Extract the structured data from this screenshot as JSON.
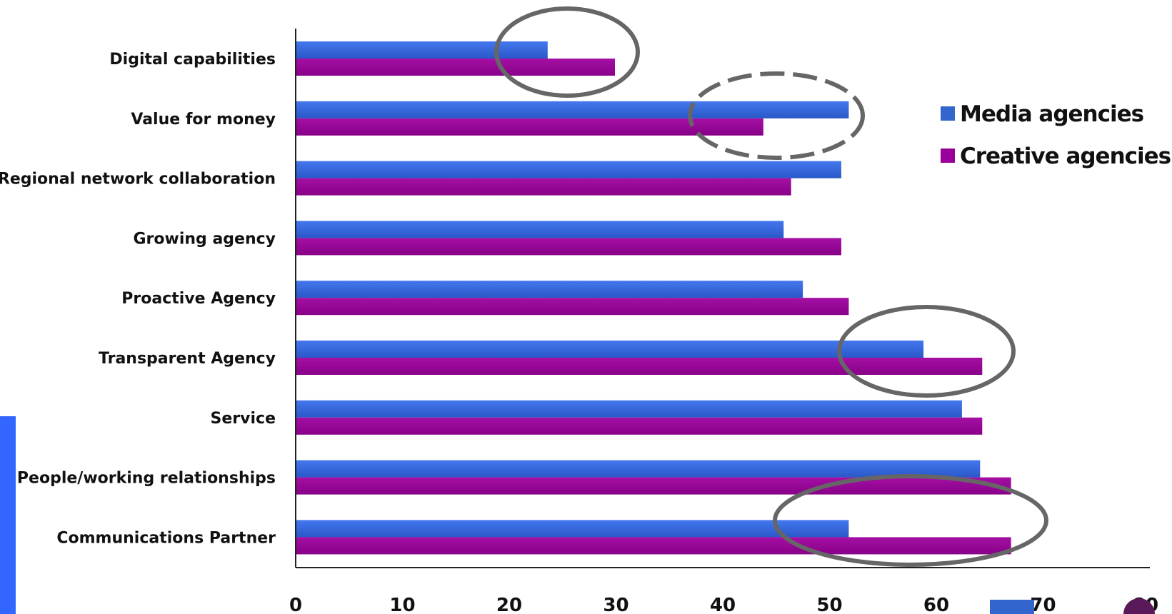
{
  "chart_data": {
    "type": "bar",
    "orientation": "horizontal",
    "categories": [
      "Digital capabilities",
      "Value for money",
      "Regional network collaboration",
      "Growing agency",
      "Proactive Agency",
      "Transparent Agency",
      "Service",
      "People/working relationships",
      "Communications Partner"
    ],
    "series": [
      {
        "name": "Media agencies",
        "color": "#3366CC",
        "values": [
          23.6,
          51.8,
          51.1,
          45.7,
          47.5,
          58.8,
          62.4,
          64.1,
          51.8
        ]
      },
      {
        "name": "Creative agencies",
        "color": "#990099",
        "values": [
          29.9,
          43.8,
          46.4,
          51.1,
          51.8,
          64.3,
          64.3,
          67.0,
          67.0
        ]
      }
    ],
    "xlim": [
      0,
      80
    ],
    "x_ticks": [
      "0",
      "10",
      "20",
      "30",
      "40",
      "50",
      "60",
      "70",
      "80"
    ],
    "title": "",
    "xlabel": "",
    "ylabel": "",
    "legend_position": "right",
    "grid": false,
    "annotations": [
      {
        "type": "ellipse",
        "style": "solid",
        "category": "Digital capabilities"
      },
      {
        "type": "ellipse",
        "style": "dashed",
        "category": "Value for money"
      },
      {
        "type": "ellipse",
        "style": "solid",
        "category": "Transparent Agency"
      },
      {
        "type": "ellipse",
        "style": "solid",
        "category": "Communications Partner"
      }
    ]
  }
}
